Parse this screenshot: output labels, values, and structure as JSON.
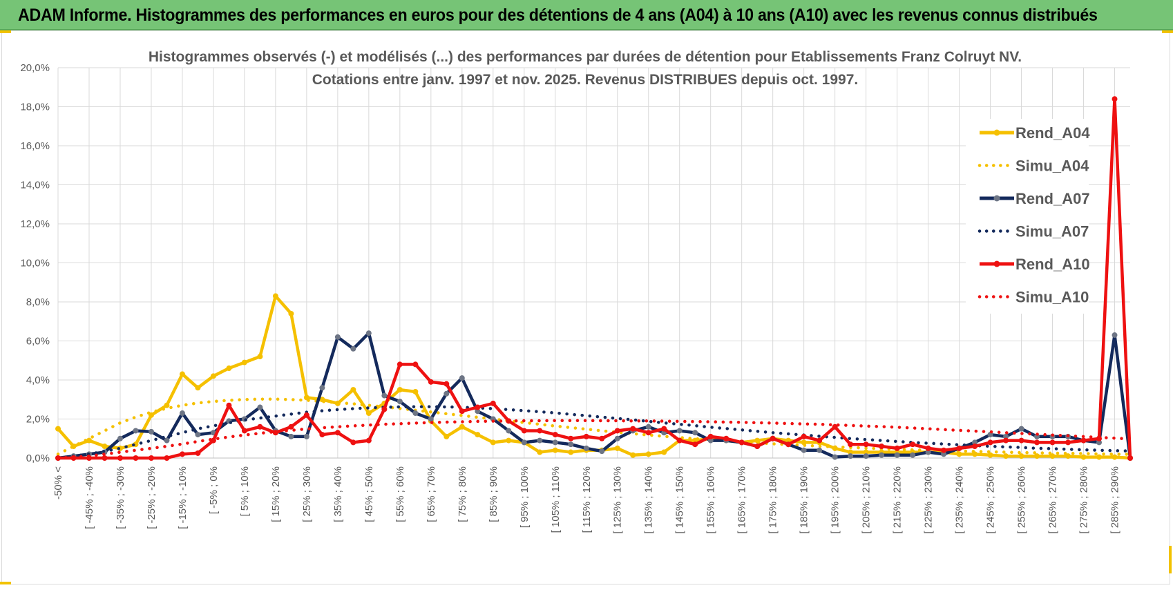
{
  "banner": {
    "title": "ADAM Informe. Histogrammes des performances en euros pour des détentions de 4 ans (A04) à 10 ans (A10) avec les revenus connus distribués"
  },
  "chart_data": {
    "type": "line",
    "title_line1": "Histogrammes observés (-) et modélisés (...)  des performances par durées de détention pour Etablissements Franz Colruyt NV.",
    "title_line2": "Cotations entre janv. 1997 et nov. 2025. Revenus DISTRIBUES depuis oct. 1997.",
    "ylim": [
      0,
      20
    ],
    "yticks": [
      "0,0%",
      "2,0%",
      "4,0%",
      "6,0%",
      "8,0%",
      "10,0%",
      "12,0%",
      "14,0%",
      "16,0%",
      "18,0%",
      "20,0%"
    ],
    "x_labels": [
      "-50% <",
      "[ -45% ; -40%",
      "[ -35% ; -30%",
      "[ -25% ; -20%",
      "[ -15% ; -10%",
      "[ -5% ; 0%",
      "[ 5% ; 10%",
      "[ 15% ; 20%",
      "[ 25% ; 30%",
      "[ 35% ; 40%",
      "[ 45% ; 50%",
      "[ 55% ; 60%",
      "[ 65% ; 70%",
      "[ 75% ; 80%",
      "[ 85% ; 90%",
      "[ 95% ; 100%",
      "[ 105% ; 110%",
      "[ 115% ; 120%",
      "[ 125% ; 130%",
      "[ 135% ; 140%",
      "[ 145% ; 150%",
      "[ 155% ; 160%",
      "[ 165% ; 170%",
      "[ 175% ; 180%",
      "[ 185% ; 190%",
      "[ 195% ; 200%",
      "[ 205% ; 210%",
      "[ 215% ; 220%",
      "[ 225% ; 230%",
      "[ 235% ; 240%",
      "[ 245% ; 250%",
      "[ 255% ; 260%",
      "[ 265% ; 270%",
      "[ 275% ; 280%",
      "[ 285% ; 290%"
    ],
    "n_points": 70,
    "series": [
      {
        "name": "Rend_A04",
        "style": "solid",
        "color": "#f5c000",
        "values": [
          1.5,
          0.6,
          0.9,
          0.6,
          0.5,
          0.7,
          2.2,
          2.7,
          4.3,
          3.6,
          4.2,
          4.6,
          4.9,
          5.2,
          8.3,
          7.4,
          3.1,
          3.0,
          2.8,
          3.5,
          2.3,
          2.8,
          3.5,
          3.4,
          1.9,
          1.1,
          1.6,
          1.2,
          0.8,
          0.9,
          0.8,
          0.3,
          0.4,
          0.3,
          0.4,
          0.4,
          0.5,
          0.15,
          0.2,
          0.3,
          0.9,
          0.9,
          1.0,
          0.9,
          0.8,
          0.9,
          1.0,
          0.9,
          0.8,
          0.8,
          0.5,
          0.3,
          0.3,
          0.3,
          0.3,
          0.3,
          0.3,
          0.3,
          0.2,
          0.2,
          0.15,
          0.1,
          0.1,
          0.1,
          0.1,
          0.1,
          0.05,
          0.05,
          0.05,
          0.0
        ]
      },
      {
        "name": "Simu_A04",
        "style": "dotted",
        "color": "#f5c000",
        "values": [
          0.2,
          0.6,
          1.0,
          1.4,
          1.8,
          2.1,
          2.35,
          2.55,
          2.7,
          2.82,
          2.9,
          2.96,
          3.0,
          3.02,
          3.02,
          3.0,
          2.96,
          2.9,
          2.84,
          2.78,
          2.7,
          2.62,
          2.54,
          2.45,
          2.36,
          2.27,
          2.18,
          2.09,
          2.0,
          1.91,
          1.82,
          1.73,
          1.64,
          1.56,
          1.48,
          1.4,
          1.32,
          1.25,
          1.18,
          1.11,
          1.05,
          0.99,
          0.93,
          0.88,
          0.83,
          0.78,
          0.73,
          0.69,
          0.65,
          0.61,
          0.57,
          0.54,
          0.51,
          0.48,
          0.45,
          0.42,
          0.4,
          0.38,
          0.36,
          0.34,
          0.32,
          0.3,
          0.28,
          0.27,
          0.25,
          0.24,
          0.23,
          0.21,
          0.2,
          0.19
        ]
      },
      {
        "name": "Rend_A07",
        "style": "solid",
        "color": "#142a5c",
        "values": [
          0.0,
          0.1,
          0.2,
          0.3,
          1.0,
          1.4,
          1.35,
          0.9,
          2.3,
          1.2,
          1.3,
          1.9,
          2.0,
          2.6,
          1.4,
          1.1,
          1.1,
          3.6,
          6.2,
          5.6,
          6.4,
          3.2,
          2.9,
          2.3,
          2.0,
          3.3,
          4.1,
          2.4,
          2.0,
          1.4,
          0.8,
          0.9,
          0.8,
          0.7,
          0.5,
          0.35,
          1.0,
          1.4,
          1.6,
          1.3,
          1.4,
          1.3,
          0.9,
          0.9,
          0.8,
          0.6,
          1.0,
          0.7,
          0.4,
          0.4,
          0.05,
          0.1,
          0.1,
          0.15,
          0.15,
          0.15,
          0.3,
          0.2,
          0.5,
          0.8,
          1.2,
          1.1,
          1.5,
          1.1,
          1.1,
          1.1,
          0.9,
          0.8,
          6.3,
          0.0
        ]
      },
      {
        "name": "Simu_A07",
        "style": "dotted",
        "color": "#142a5c",
        "values": [
          0.0,
          0.1,
          0.2,
          0.35,
          0.5,
          0.7,
          0.9,
          1.1,
          1.3,
          1.5,
          1.65,
          1.8,
          1.95,
          2.05,
          2.15,
          2.25,
          2.35,
          2.42,
          2.48,
          2.53,
          2.57,
          2.6,
          2.62,
          2.63,
          2.63,
          2.62,
          2.6,
          2.57,
          2.53,
          2.48,
          2.43,
          2.37,
          2.31,
          2.24,
          2.17,
          2.1,
          2.03,
          1.96,
          1.88,
          1.8,
          1.73,
          1.66,
          1.58,
          1.51,
          1.44,
          1.37,
          1.3,
          1.24,
          1.18,
          1.12,
          1.06,
          1.0,
          0.95,
          0.9,
          0.85,
          0.8,
          0.76,
          0.72,
          0.68,
          0.64,
          0.6,
          0.57,
          0.54,
          0.5,
          0.48,
          0.45,
          0.42,
          0.4,
          0.38,
          0.36
        ]
      },
      {
        "name": "Rend_A10",
        "style": "solid",
        "color": "#ee1111",
        "values": [
          0.0,
          0.0,
          0.0,
          0.0,
          0.0,
          0.0,
          0.0,
          0.0,
          0.2,
          0.25,
          0.9,
          2.7,
          1.4,
          1.6,
          1.3,
          1.6,
          2.2,
          1.2,
          1.3,
          0.8,
          0.9,
          2.5,
          4.8,
          4.8,
          3.9,
          3.8,
          2.4,
          2.6,
          2.8,
          1.9,
          1.4,
          1.4,
          1.2,
          1.0,
          1.1,
          1.0,
          1.4,
          1.5,
          1.3,
          1.5,
          0.9,
          0.7,
          1.1,
          1.0,
          0.8,
          0.6,
          1.0,
          0.7,
          1.1,
          0.9,
          1.6,
          0.7,
          0.7,
          0.6,
          0.5,
          0.7,
          0.5,
          0.4,
          0.5,
          0.6,
          0.8,
          0.9,
          0.9,
          0.8,
          0.8,
          0.8,
          0.9,
          1.0,
          18.4,
          0.0
        ]
      },
      {
        "name": "Simu_A10",
        "style": "dotted",
        "color": "#ee1111",
        "values": [
          0.0,
          0.05,
          0.1,
          0.2,
          0.3,
          0.4,
          0.5,
          0.6,
          0.72,
          0.85,
          0.97,
          1.08,
          1.18,
          1.27,
          1.35,
          1.42,
          1.49,
          1.55,
          1.6,
          1.65,
          1.69,
          1.73,
          1.76,
          1.79,
          1.82,
          1.84,
          1.86,
          1.88,
          1.89,
          1.9,
          1.91,
          1.91,
          1.92,
          1.92,
          1.92,
          1.91,
          1.91,
          1.9,
          1.9,
          1.89,
          1.88,
          1.87,
          1.86,
          1.84,
          1.83,
          1.81,
          1.79,
          1.77,
          1.75,
          1.73,
          1.7,
          1.67,
          1.64,
          1.61,
          1.58,
          1.54,
          1.5,
          1.46,
          1.42,
          1.38,
          1.34,
          1.3,
          1.26,
          1.22,
          1.18,
          1.14,
          1.1,
          1.06,
          1.02,
          0.98
        ]
      }
    ]
  }
}
